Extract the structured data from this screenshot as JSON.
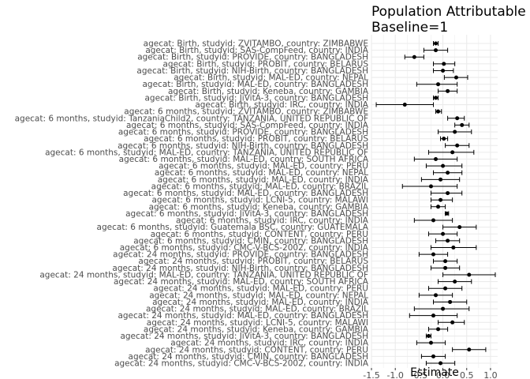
{
  "chart_data": {
    "type": "forest",
    "title_lines": [
      "Population Attributable",
      "Baseline=1"
    ],
    "xlabel": "Estimate",
    "ylabel": "",
    "xlim": [
      -1.5,
      1.15
    ],
    "xticks": [
      -1.5,
      -1.0,
      -0.5,
      0.0,
      0.5,
      1.0
    ],
    "xtick_labels": [
      "-1.5",
      "-1.0",
      "-0.5",
      "0.0",
      "0.5",
      "1.0"
    ],
    "grid": true,
    "rows": [
      {
        "label": "agecat: Birth, studyid: ZVITAMBO, country: ZIMBABWE",
        "est": -0.15,
        "lo": -0.2,
        "hi": -0.1
      },
      {
        "label": "agecat: Birth, studyid: SAS-CompFeed, country: INDIA",
        "est": -0.15,
        "lo": -0.4,
        "hi": 0.1
      },
      {
        "label": "agecat: Birth, studyid: PROVIDE, country: BANGLADESH",
        "est": -0.6,
        "lo": -0.8,
        "hi": -0.4
      },
      {
        "label": "agecat: Birth, studyid: PROBIT, country: BELARUS",
        "est": 0.02,
        "lo": -0.2,
        "hi": 0.25
      },
      {
        "label": "agecat: Birth, studyid: NIH-Birth, country: BANGLADESH",
        "est": 0.0,
        "lo": -0.2,
        "hi": 0.22
      },
      {
        "label": "agecat: Birth, studyid: MAL-ED, country: NEPAL",
        "est": 0.28,
        "lo": 0.03,
        "hi": 0.52
      },
      {
        "label": "agecat: Birth, studyid: MAL-ED, country: BANGLADESH",
        "est": -0.1,
        "lo": -0.55,
        "hi": 0.3
      },
      {
        "label": "agecat: Birth, studyid: Keneba, country: GAMBIA",
        "est": 0.1,
        "lo": -0.1,
        "hi": 0.3
      },
      {
        "label": "agecat: Birth, studyid: JiVitA-3, country: BANGLADESH",
        "est": -0.15,
        "lo": -0.2,
        "hi": -0.1
      },
      {
        "label": "agecat: Birth, studyid: IRC, country: INDIA",
        "est": -0.8,
        "lo": -1.4,
        "hi": -0.2
      },
      {
        "label": "agecat: 6 months, studyid: ZVITAMBO, country: ZIMBABWE",
        "est": -0.1,
        "lo": -0.15,
        "hi": -0.03
      },
      {
        "label": "agecat: 6 months, studyid: TanzaniaChild2, country: TANZANIA, UNITED REPUBLIC OF",
        "est": 0.3,
        "lo": 0.1,
        "hi": 0.45
      },
      {
        "label": "agecat: 6 months, studyid: SAS-CompFeed, country: INDIA",
        "est": 0.4,
        "lo": 0.25,
        "hi": 0.55
      },
      {
        "label": "agecat: 6 months, studyid: PROVIDE, country: BANGLADESH",
        "est": 0.25,
        "lo": -0.1,
        "hi": 0.6
      },
      {
        "label": "agecat: 6 months, studyid: PROBIT, country: BELARUS",
        "est": 0.02,
        "lo": -0.05,
        "hi": 0.1
      },
      {
        "label": "agecat: 6 months, studyid: NIH-Birth, country: BANGLADESH",
        "est": 0.3,
        "lo": 0.05,
        "hi": 0.55
      },
      {
        "label": "agecat: 6 months, studyid: MAL-ED, country: TANZANIA, UNITED REPUBLIC OF",
        "est": 0.2,
        "lo": -0.3,
        "hi": 0.65
      },
      {
        "label": "agecat: 6 months, studyid: MAL-ED, country: SOUTH AFRICA",
        "est": -0.15,
        "lo": -0.6,
        "hi": 0.3
      },
      {
        "label": "agecat: 6 months, studyid: MAL-ED, country: PERU",
        "est": 0.0,
        "lo": -0.35,
        "hi": 0.4
      },
      {
        "label": "agecat: 6 months, studyid: MAL-ED, country: NEPAL",
        "est": 0.1,
        "lo": -0.2,
        "hi": 0.4
      },
      {
        "label": "agecat: 6 months, studyid: MAL-ED, country: INDIA",
        "est": -0.05,
        "lo": -0.45,
        "hi": 0.35
      },
      {
        "label": "agecat: 6 months, studyid: MAL-ED, country: BRAZIL",
        "est": -0.25,
        "lo": -0.85,
        "hi": 0.3
      },
      {
        "label": "agecat: 6 months, studyid: MAL-ED, country: BANGLADESH",
        "est": 0.1,
        "lo": -0.25,
        "hi": 0.4
      },
      {
        "label": "agecat: 6 months, studyid: LCNI-5, country: MALAWI",
        "est": -0.05,
        "lo": -0.25,
        "hi": 0.2
      },
      {
        "label": "agecat: 6 months, studyid: Keneba, country: GAMBIA",
        "est": -0.1,
        "lo": -0.25,
        "hi": 0.05
      },
      {
        "label": "agecat: 6 months, studyid: JiVitA-3, country: BANGLADESH",
        "est": 0.08,
        "lo": 0.05,
        "hi": 0.12
      },
      {
        "label": "agecat: 6 months, studyid: IRC, country: INDIA",
        "est": -0.2,
        "lo": -0.6,
        "hi": 0.2
      },
      {
        "label": "agecat: 6 months, studyid: Guatemala BSC, country: GUATEMALA",
        "est": 0.35,
        "lo": 0.0,
        "hi": 0.7
      },
      {
        "label": "agecat: 6 months, studyid: CONTENT, country: PERU",
        "est": 0.0,
        "lo": -0.3,
        "hi": 0.3
      },
      {
        "label": "agecat: 6 months, studyid: CMIN, country: BANGLADESH",
        "est": 0.1,
        "lo": -0.15,
        "hi": 0.35
      },
      {
        "label": "agecat: 6 months, studyid: CMC-V-BCS-2002, country: INDIA",
        "est": 0.22,
        "lo": -0.25,
        "hi": 0.7
      },
      {
        "label": "agecat: 24 months, studyid: PROVIDE, country: BANGLADESH",
        "est": -0.2,
        "lo": -0.5,
        "hi": 0.1
      },
      {
        "label": "agecat: 24 months, studyid: PROBIT, country: BELARUS",
        "est": 0.05,
        "lo": -0.2,
        "hi": 0.3
      },
      {
        "label": "agecat: 24 months, studyid: NIH-Birth, country: BANGLADESH",
        "est": 0.05,
        "lo": -0.25,
        "hi": 0.35
      },
      {
        "label": "agecat: 24 months, studyid: MAL-ED, country: TANZANIA, UNITED REPUBLIC OF",
        "est": 0.55,
        "lo": 0.0,
        "hi": 1.1
      },
      {
        "label": "agecat: 24 months, studyid: MAL-ED, country: SOUTH AFRICA",
        "est": 0.25,
        "lo": -0.1,
        "hi": 0.6
      },
      {
        "label": "agecat: 24 months, studyid: MAL-ED, country: PERU",
        "est": 0.05,
        "lo": -0.3,
        "hi": 0.4
      },
      {
        "label": "agecat: 24 months, studyid: MAL-ED, country: NEPAL",
        "est": -0.15,
        "lo": -0.5,
        "hi": 0.2
      },
      {
        "label": "agecat: 24 months, studyid: MAL-ED, country: INDIA",
        "est": 0.15,
        "lo": -0.2,
        "hi": 0.5
      },
      {
        "label": "agecat: 24 months, studyid: MAL-ED, country: BRAZIL",
        "est": 0.0,
        "lo": -0.6,
        "hi": 0.55
      },
      {
        "label": "agecat: 24 months, studyid: MAL-ED, country: BANGLADESH",
        "est": -0.2,
        "lo": -0.7,
        "hi": 0.3
      },
      {
        "label": "agecat: 24 months, studyid: LCNI-5, country: MALAWI",
        "est": 0.2,
        "lo": -0.1,
        "hi": 0.45
      },
      {
        "label": "agecat: 24 months, studyid: Keneba, country: GAMBIA",
        "est": -0.1,
        "lo": -0.3,
        "hi": 0.1
      },
      {
        "label": "agecat: 24 months, studyid: JiVitA-3, country: BANGLADESH",
        "est": -0.3,
        "lo": -0.35,
        "hi": -0.25
      },
      {
        "label": "agecat: 24 months, studyid: IRC, country: INDIA",
        "est": -0.25,
        "lo": -0.55,
        "hi": 0.05
      },
      {
        "label": "agecat: 24 months, studyid: CONTENT, country: PERU",
        "est": 0.55,
        "lo": 0.2,
        "hi": 0.9
      },
      {
        "label": "agecat: 24 months, studyid: CMIN, country: BANGLADESH",
        "est": -0.2,
        "lo": -0.45,
        "hi": 0.05
      },
      {
        "label": "agecat: 24 months, studyid: CMC-V-BCS-2002, country: INDIA",
        "est": -0.05,
        "lo": -0.35,
        "hi": 0.25
      }
    ]
  }
}
